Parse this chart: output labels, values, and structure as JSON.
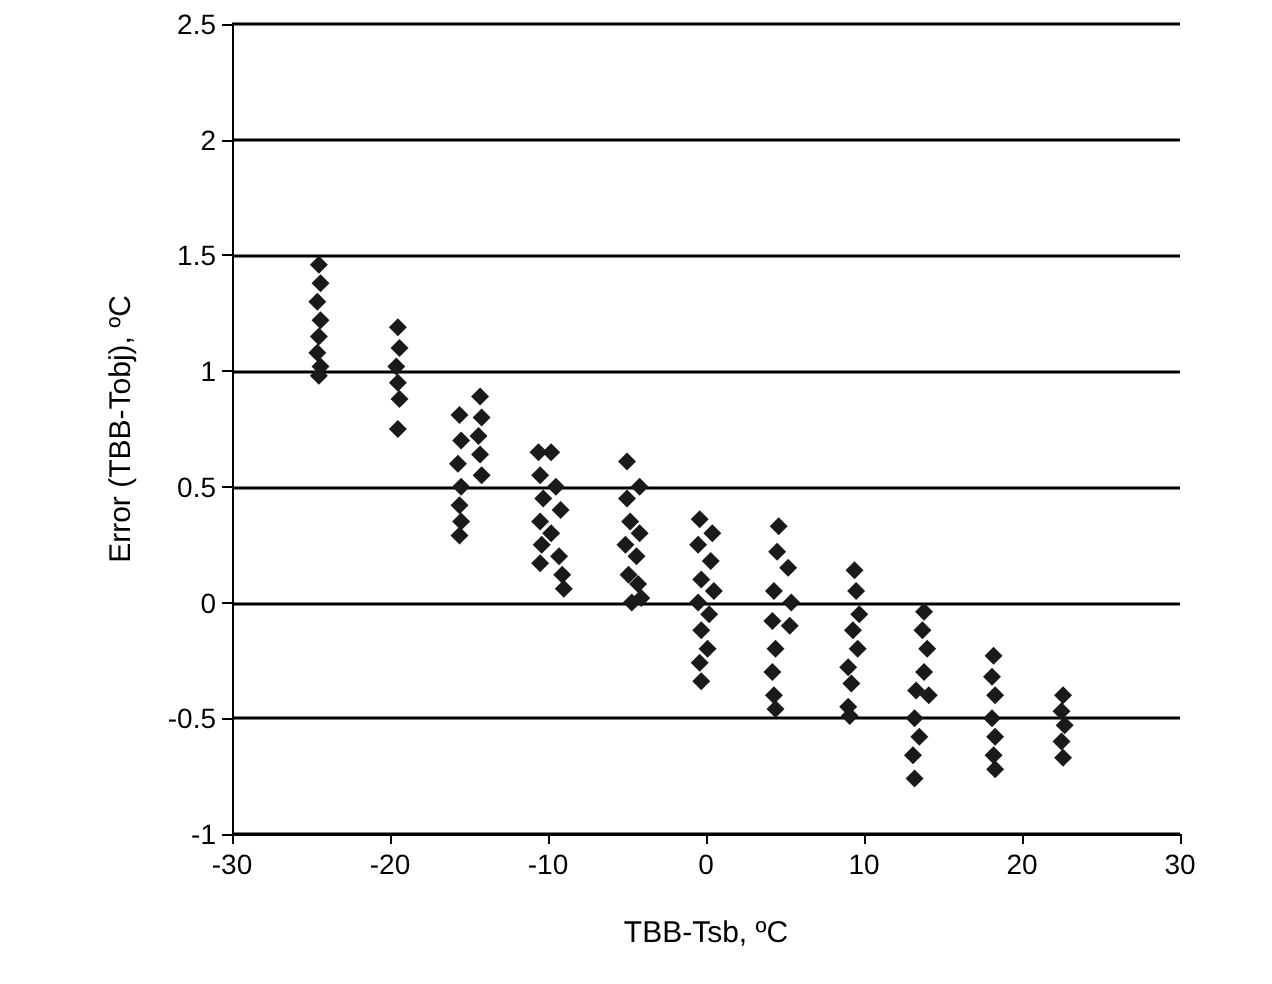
{
  "chart_data": {
    "type": "scatter",
    "xlabel": "TBB-Tsb, ºC",
    "ylabel": "Error (TBB-Tobj), ºC",
    "xlim": [
      -30,
      30
    ],
    "xticks": [
      -30,
      -20,
      -10,
      0,
      10,
      20,
      30
    ],
    "ylim": [
      -1,
      2.5
    ],
    "yticks": [
      -1,
      -0.5,
      0,
      0.5,
      1,
      1.5,
      2,
      2.5
    ],
    "grid": "y",
    "marker": "diamond",
    "series": [
      {
        "color": "#1a1a1a",
        "x": [
          -24.5,
          -24.4,
          -24.6,
          -24.4,
          -24.5,
          -24.6,
          -24.4,
          -24.5,
          -19.5,
          -19.4,
          -19.6,
          -19.5,
          -19.4,
          -19.5,
          -15.6,
          -15.5,
          -15.7,
          -15.5,
          -15.6,
          -15.5,
          -15.6,
          -14.3,
          -14.2,
          -14.4,
          -14.3,
          -14.2,
          -10.6,
          -9.8,
          -10.5,
          -9.5,
          -10.3,
          -9.2,
          -10.5,
          -9.8,
          -10.4,
          -9.3,
          -10.5,
          -9.1,
          -9.0,
          -5.0,
          -5.0,
          -4.2,
          -4.8,
          -4.2,
          -5.1,
          -4.4,
          -4.9,
          -4.3,
          -4.7,
          -4.1,
          -0.4,
          0.4,
          -0.5,
          0.3,
          -0.3,
          0.5,
          -0.5,
          0.2,
          -0.3,
          0.1,
          -0.4,
          -0.3,
          4.6,
          4.5,
          5.2,
          4.3,
          5.4,
          4.2,
          5.3,
          4.4,
          4.2,
          4.3,
          4.4,
          9.4,
          9.5,
          9.7,
          9.3,
          9.6,
          9.0,
          9.2,
          9.0,
          9.1,
          13.8,
          13.7,
          14.0,
          13.8,
          14.1,
          13.3,
          13.2,
          13.5,
          13.1,
          13.2,
          18.2,
          18.1,
          18.3,
          18.1,
          18.3,
          18.2,
          18.3,
          22.6,
          22.5,
          22.7,
          22.5,
          22.6
        ],
        "values": [
          1.46,
          1.38,
          1.3,
          1.22,
          1.15,
          1.08,
          1.02,
          0.98,
          1.19,
          1.1,
          1.02,
          0.95,
          0.88,
          0.75,
          0.81,
          0.7,
          0.6,
          0.5,
          0.42,
          0.35,
          0.29,
          0.89,
          0.8,
          0.72,
          0.64,
          0.55,
          0.65,
          0.65,
          0.55,
          0.5,
          0.45,
          0.4,
          0.35,
          0.3,
          0.25,
          0.2,
          0.17,
          0.12,
          0.06,
          0.61,
          0.45,
          0.5,
          0.35,
          0.3,
          0.25,
          0.2,
          0.12,
          0.08,
          0.0,
          0.02,
          0.36,
          0.3,
          0.25,
          0.18,
          0.1,
          0.05,
          0.0,
          -0.05,
          -0.12,
          -0.2,
          -0.26,
          -0.34,
          0.33,
          0.22,
          0.15,
          0.05,
          0.0,
          -0.08,
          -0.1,
          -0.2,
          -0.3,
          -0.4,
          -0.46,
          0.14,
          0.05,
          -0.05,
          -0.12,
          -0.2,
          -0.28,
          -0.35,
          -0.45,
          -0.49,
          -0.04,
          -0.12,
          -0.2,
          -0.3,
          -0.4,
          -0.38,
          -0.5,
          -0.58,
          -0.66,
          -0.76,
          -0.23,
          -0.32,
          -0.4,
          -0.5,
          -0.58,
          -0.66,
          -0.72,
          -0.4,
          -0.47,
          -0.53,
          -0.6,
          -0.67
        ]
      }
    ]
  }
}
